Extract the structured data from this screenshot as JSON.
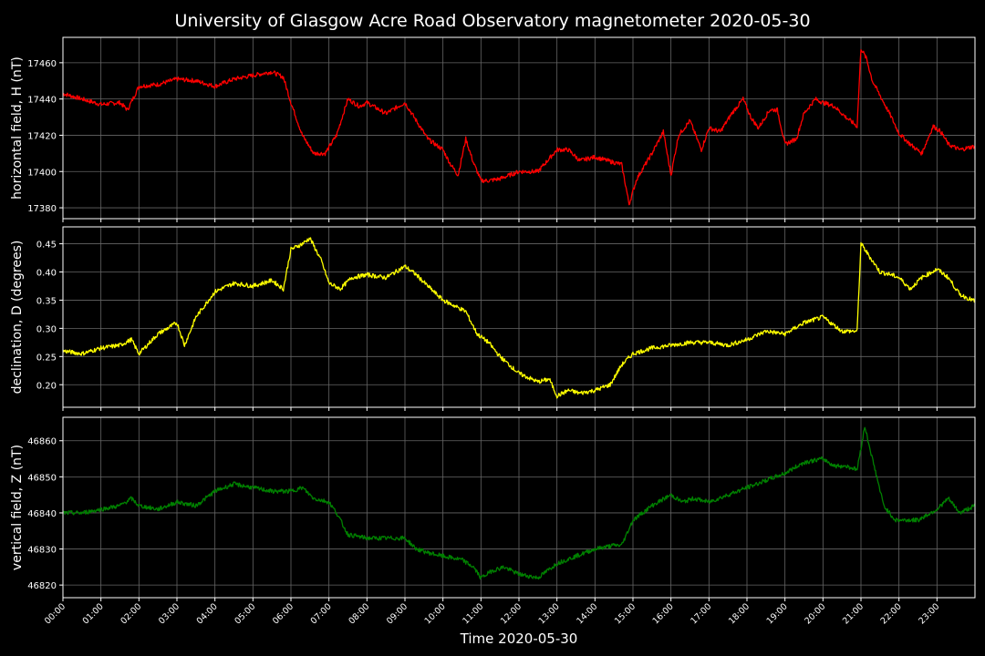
{
  "figure": {
    "title": "University of Glasgow Acre Road Observatory magnetometer 2020-05-30",
    "xlabel": "Time 2020-05-30",
    "background": "#000000",
    "grid_color": "#666666"
  },
  "chart_data": [
    {
      "type": "line",
      "name": "H",
      "ylabel": "horizontal field, H (nT)",
      "color": "#ff0000",
      "xlim": [
        0,
        24
      ],
      "ylim": [
        17374,
        17474
      ],
      "yticks": [
        17380,
        17400,
        17420,
        17440,
        17460
      ],
      "grid": true,
      "x": [
        0,
        0.5,
        1,
        1.5,
        1.7,
        2,
        2.5,
        3,
        3.5,
        4,
        4.5,
        5,
        5.5,
        5.8,
        6,
        6.3,
        6.6,
        6.9,
        7.2,
        7.5,
        7.8,
        8,
        8.5,
        9,
        9.3,
        9.6,
        10,
        10.2,
        10.4,
        10.6,
        10.8,
        11,
        11.2,
        11.5,
        12,
        12.5,
        13,
        13.3,
        13.6,
        14,
        14.5,
        14.7,
        14.9,
        15.1,
        15.3,
        15.5,
        15.8,
        16,
        16.2,
        16.5,
        16.8,
        17,
        17.3,
        17.6,
        17.9,
        18.1,
        18.3,
        18.6,
        18.8,
        19,
        19.3,
        19.5,
        19.8,
        20,
        20.3,
        20.6,
        20.9,
        21,
        21.15,
        21.3,
        21.5,
        21.8,
        22,
        22.3,
        22.6,
        22.9,
        23.1,
        23.3,
        23.6,
        24
      ],
      "y": [
        17443,
        17440,
        17437,
        17438,
        17434,
        17447,
        17448,
        17451,
        17450,
        17447,
        17451,
        17453,
        17455,
        17452,
        17438,
        17420,
        17410,
        17410,
        17420,
        17440,
        17436,
        17438,
        17432,
        17438,
        17428,
        17418,
        17412,
        17404,
        17398,
        17418,
        17405,
        17395,
        17395,
        17396,
        17400,
        17400,
        17412,
        17412,
        17406,
        17408,
        17405,
        17404,
        17382,
        17396,
        17403,
        17410,
        17422,
        17398,
        17420,
        17428,
        17412,
        17424,
        17422,
        17432,
        17440,
        17430,
        17424,
        17434,
        17434,
        17415,
        17418,
        17432,
        17440,
        17438,
        17436,
        17430,
        17425,
        17468,
        17462,
        17450,
        17442,
        17430,
        17421,
        17415,
        17410,
        17425,
        17422,
        17415,
        17412,
        17414
      ]
    },
    {
      "type": "line",
      "name": "D",
      "ylabel": "declination, D (degrees)",
      "color": "#ffff00",
      "xlim": [
        0,
        24
      ],
      "ylim": [
        0.16,
        0.48
      ],
      "yticks": [
        0.2,
        0.25,
        0.3,
        0.35,
        0.4,
        0.45
      ],
      "grid": true,
      "x": [
        0,
        0.5,
        1,
        1.5,
        1.8,
        2,
        2.5,
        3,
        3.2,
        3.5,
        4,
        4.5,
        5,
        5.5,
        5.8,
        6,
        6.3,
        6.5,
        6.8,
        7,
        7.3,
        7.6,
        8,
        8.5,
        9,
        9.3,
        9.6,
        10,
        10.3,
        10.6,
        10.9,
        11.2,
        11.5,
        12,
        12.5,
        12.8,
        13,
        13.3,
        13.6,
        14,
        14.4,
        14.7,
        15,
        15.5,
        16,
        16.5,
        17,
        17.5,
        18,
        18.5,
        19,
        19.5,
        20,
        20.5,
        20.9,
        21,
        21.2,
        21.5,
        21.8,
        22,
        22.3,
        22.6,
        23,
        23.3,
        23.6,
        24
      ],
      "y": [
        0.26,
        0.255,
        0.265,
        0.27,
        0.28,
        0.255,
        0.29,
        0.31,
        0.27,
        0.32,
        0.365,
        0.38,
        0.375,
        0.385,
        0.37,
        0.44,
        0.45,
        0.46,
        0.42,
        0.38,
        0.37,
        0.39,
        0.395,
        0.39,
        0.41,
        0.395,
        0.375,
        0.35,
        0.34,
        0.33,
        0.29,
        0.275,
        0.25,
        0.22,
        0.205,
        0.21,
        0.18,
        0.19,
        0.185,
        0.19,
        0.2,
        0.235,
        0.255,
        0.265,
        0.27,
        0.275,
        0.275,
        0.27,
        0.28,
        0.295,
        0.29,
        0.31,
        0.32,
        0.295,
        0.295,
        0.45,
        0.43,
        0.4,
        0.395,
        0.39,
        0.37,
        0.39,
        0.405,
        0.39,
        0.36,
        0.348
      ]
    },
    {
      "type": "line",
      "name": "Z",
      "ylabel": "vertical field, Z (nT)",
      "color": "#008000",
      "xlim": [
        0,
        24
      ],
      "ylim": [
        46816.5,
        46866.5
      ],
      "yticks": [
        46820,
        46830,
        46840,
        46850,
        46860
      ],
      "grid": true,
      "x": [
        0,
        0.5,
        1,
        1.5,
        1.8,
        2,
        2.5,
        3,
        3.5,
        4,
        4.5,
        5,
        5.5,
        6,
        6.3,
        6.6,
        7,
        7.2,
        7.5,
        8,
        8.5,
        9,
        9.3,
        9.6,
        10,
        10.5,
        10.8,
        11,
        11.3,
        11.6,
        12,
        12.5,
        13,
        13.5,
        14,
        14.5,
        14.7,
        15,
        15.5,
        16,
        16.3,
        16.6,
        17,
        17.5,
        18,
        18.5,
        19,
        19.5,
        20,
        20.3,
        20.6,
        20.9,
        21.1,
        21.3,
        21.6,
        21.9,
        22.2,
        22.5,
        23,
        23.3,
        23.6,
        24
      ],
      "y": [
        46840,
        46840,
        46841,
        46842,
        46844,
        46842,
        46841,
        46843,
        46842,
        46846,
        46848,
        46847,
        46846,
        46846,
        46847,
        46844,
        46843,
        46840,
        46834,
        46833,
        46833,
        46833,
        46830,
        46829,
        46828,
        46827,
        46825,
        46822,
        46824,
        46825,
        46823,
        46822,
        46826,
        46828,
        46830,
        46831,
        46831,
        46838,
        46842,
        46845,
        46843,
        46844,
        46843,
        46845,
        46847,
        46849,
        46851,
        46854,
        46855,
        46853,
        46853,
        46852,
        46864,
        46855,
        46842,
        46838,
        46838,
        46838,
        46841,
        46844,
        46840,
        46842
      ]
    }
  ],
  "xticks": [
    "00:00",
    "01:00",
    "02:00",
    "03:00",
    "04:00",
    "05:00",
    "06:00",
    "07:00",
    "08:00",
    "09:00",
    "10:00",
    "11:00",
    "12:00",
    "13:00",
    "14:00",
    "15:00",
    "16:00",
    "17:00",
    "18:00",
    "19:00",
    "20:00",
    "21:00",
    "22:00",
    "23:00"
  ]
}
